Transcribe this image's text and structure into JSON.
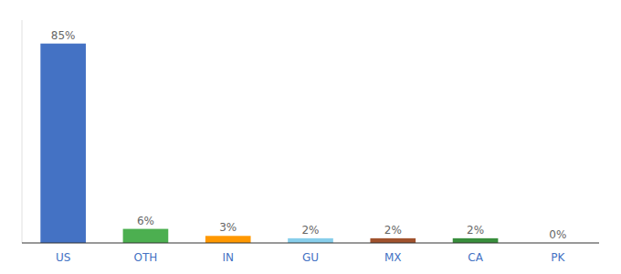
{
  "chart_data": {
    "type": "bar",
    "categories": [
      "US",
      "OTH",
      "IN",
      "GU",
      "MX",
      "CA",
      "PK"
    ],
    "values": [
      85,
      6,
      3,
      2,
      2,
      2,
      0
    ],
    "value_labels": [
      "85%",
      "6%",
      "3%",
      "2%",
      "2%",
      "2%",
      "0%"
    ],
    "colors": [
      "#4472c4",
      "#4caf50",
      "#ff9800",
      "#87ceeb",
      "#a0522d",
      "#388e3c",
      "#bdbdbd"
    ],
    "ylim": [
      0,
      95
    ],
    "data_labels": true,
    "tick_labels": "x",
    "grid": false
  }
}
